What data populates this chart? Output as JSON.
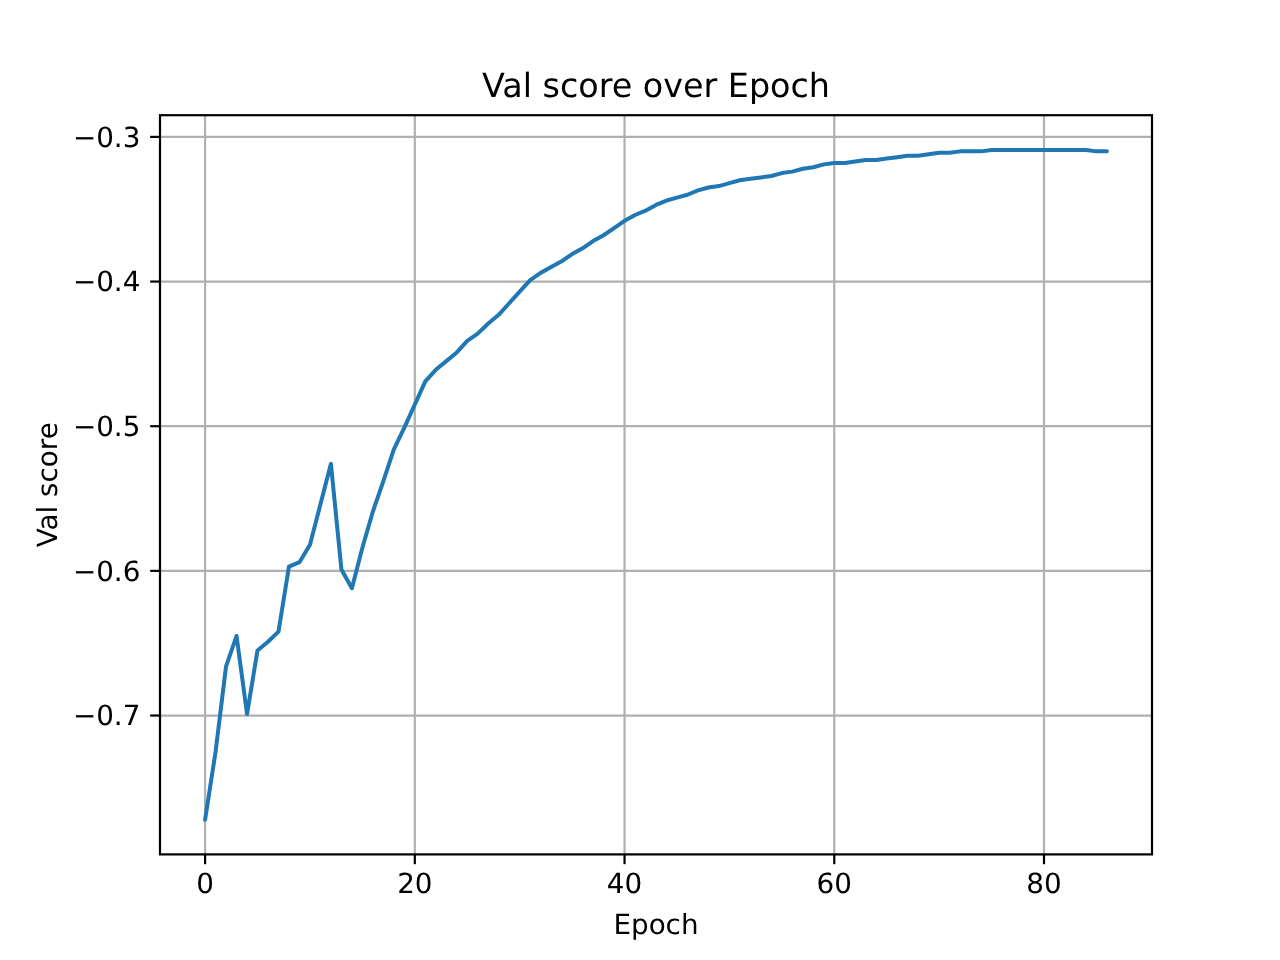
{
  "chart_data": {
    "type": "line",
    "title": "Val score over Epoch",
    "xlabel": "Epoch",
    "ylabel": "Val score",
    "x": [
      0,
      1,
      2,
      3,
      4,
      5,
      6,
      7,
      8,
      9,
      10,
      11,
      12,
      13,
      14,
      15,
      16,
      17,
      18,
      19,
      20,
      21,
      22,
      23,
      24,
      25,
      26,
      27,
      28,
      29,
      30,
      31,
      32,
      33,
      34,
      35,
      36,
      37,
      38,
      39,
      40,
      41,
      42,
      43,
      44,
      45,
      46,
      47,
      48,
      49,
      50,
      51,
      52,
      53,
      54,
      55,
      56,
      57,
      58,
      59,
      60,
      61,
      62,
      63,
      64,
      65,
      66,
      67,
      68,
      69,
      70,
      71,
      72,
      73,
      74,
      75,
      76,
      77,
      78,
      79,
      80,
      81,
      82,
      83,
      84,
      85,
      86
    ],
    "series": [
      {
        "color": "#1f77b4",
        "values": [
          -0.772,
          -0.725,
          -0.666,
          -0.645,
          -0.699,
          -0.655,
          -0.649,
          -0.642,
          -0.597,
          -0.594,
          -0.582,
          -0.554,
          -0.526,
          -0.599,
          -0.612,
          -0.584,
          -0.559,
          -0.538,
          -0.516,
          -0.501,
          -0.485,
          -0.469,
          -0.461,
          -0.455,
          -0.449,
          -0.441,
          -0.436,
          -0.429,
          -0.423,
          -0.415,
          -0.407,
          -0.399,
          -0.394,
          -0.39,
          -0.386,
          -0.381,
          -0.377,
          -0.372,
          -0.368,
          -0.363,
          -0.358,
          -0.354,
          -0.351,
          -0.347,
          -0.344,
          -0.342,
          -0.34,
          -0.337,
          -0.335,
          -0.334,
          -0.332,
          -0.33,
          -0.329,
          -0.328,
          -0.327,
          -0.325,
          -0.324,
          -0.322,
          -0.321,
          -0.319,
          -0.318,
          -0.318,
          -0.317,
          -0.316,
          -0.316,
          -0.315,
          -0.314,
          -0.313,
          -0.313,
          -0.312,
          -0.311,
          -0.311,
          -0.31,
          -0.31,
          -0.31,
          -0.309,
          -0.309,
          -0.309,
          -0.309,
          -0.309,
          -0.309,
          -0.309,
          -0.309,
          -0.309,
          -0.309,
          -0.31,
          -0.31
        ]
      }
    ],
    "xlim": [
      -4.3,
      90.3
    ],
    "ylim": [
      -0.796,
      -0.285
    ],
    "xticks": [
      0,
      20,
      40,
      60,
      80
    ],
    "yticks": [
      {
        "value": -0.7,
        "label": "−0.7"
      },
      {
        "value": -0.6,
        "label": "−0.6"
      },
      {
        "value": -0.5,
        "label": "−0.5"
      },
      {
        "value": -0.4,
        "label": "−0.4"
      },
      {
        "value": -0.3,
        "label": "−0.3"
      }
    ],
    "grid": true,
    "marker": "none",
    "line_style": "solid"
  }
}
